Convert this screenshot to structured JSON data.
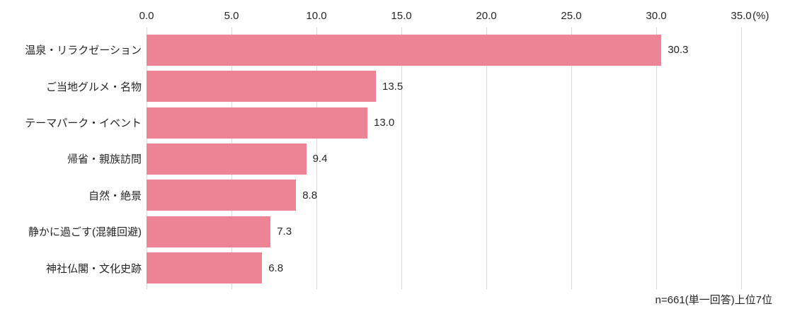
{
  "chart_data": {
    "type": "bar",
    "orientation": "horizontal",
    "categories": [
      "温泉・リラクゼーション",
      "ご当地グルメ・名物",
      "テーマパーク・イベント",
      "帰省・親族訪問",
      "自然・絶景",
      "静かに過ごす(混雑回避)",
      "神社仏閣・文化史跡"
    ],
    "values": [
      30.3,
      13.5,
      13.0,
      9.4,
      8.8,
      7.3,
      6.8
    ],
    "value_labels": [
      "30.3",
      "13.5",
      "13.0",
      "9.4",
      "8.8",
      "7.3",
      "6.8"
    ],
    "xlim": [
      0,
      35
    ],
    "x_ticks": [
      0,
      5,
      10,
      15,
      20,
      25,
      30,
      35
    ],
    "x_tick_labels": [
      "0.0",
      "5.0",
      "10.0",
      "15.0",
      "20.0",
      "25.0",
      "30.0",
      "35.0"
    ],
    "x_axis_position": "top",
    "unit_label": "(%)",
    "grid": true,
    "legend_position": "none",
    "note": "n=661(単一回答)上位7位",
    "bar_color": "#EC8496"
  },
  "colors": {
    "bar": "#EC8496",
    "gridline": "#D9D9D9",
    "text": "#262626",
    "background": "#FFFFFF"
  }
}
